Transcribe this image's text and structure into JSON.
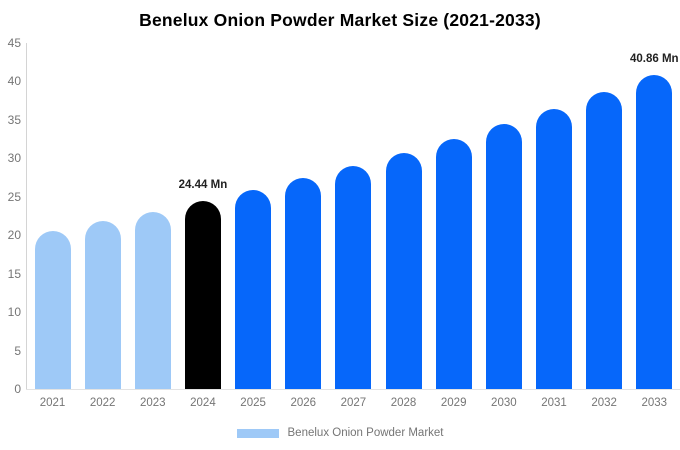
{
  "title": "Benelux Onion Powder Market Size (2021-2033)",
  "legend": {
    "label": "Benelux Onion Powder Market"
  },
  "chart_data": {
    "type": "bar",
    "title": "Benelux Onion Powder Market Size (2021-2033)",
    "categories": [
      "2021",
      "2022",
      "2023",
      "2024",
      "2025",
      "2026",
      "2027",
      "2028",
      "2029",
      "2030",
      "2031",
      "2032",
      "2033"
    ],
    "values": [
      20.59,
      21.8,
      23.08,
      24.44,
      25.88,
      27.4,
      29.01,
      30.71,
      32.52,
      34.43,
      36.45,
      38.6,
      40.86
    ],
    "unit": "Mn",
    "xlabel": "",
    "ylabel": "",
    "ylim": [
      0,
      45
    ],
    "yticks": [
      0,
      5,
      10,
      15,
      20,
      25,
      30,
      35,
      40,
      45
    ],
    "grid": false,
    "legend_position": "bottom",
    "legend_entries": [
      "Benelux Onion Powder Market"
    ],
    "bar_color_keys": [
      "past",
      "past",
      "past",
      "current",
      "forecast",
      "forecast",
      "forecast",
      "forecast",
      "forecast",
      "forecast",
      "forecast",
      "forecast",
      "forecast"
    ],
    "colors": {
      "past": "#9ec9f7",
      "current": "#000000",
      "forecast": "#0667fa",
      "axis_text": "#757575",
      "annotation_text": "#222222"
    },
    "annotations": [
      {
        "index": 3,
        "text": "24.44 Mn"
      },
      {
        "index": 12,
        "text": "40.86 Mn"
      }
    ]
  }
}
